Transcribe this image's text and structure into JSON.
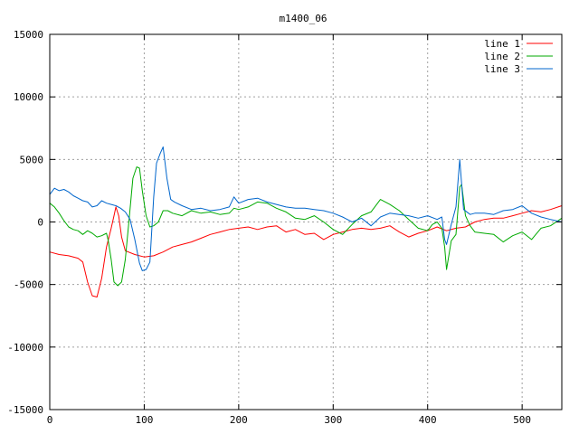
{
  "chart_data": {
    "type": "line",
    "title": "m1400_06",
    "xlabel": "",
    "ylabel": "",
    "xlim": [
      0,
      542
    ],
    "ylim": [
      -15000,
      15000
    ],
    "x_ticks": [
      0,
      100,
      200,
      300,
      400,
      500
    ],
    "y_ticks": [
      -15000,
      -10000,
      -5000,
      0,
      5000,
      10000,
      15000
    ],
    "grid": true,
    "legend_position": "top-right",
    "series": [
      {
        "name": "line 1",
        "color": "#ff0000",
        "points": [
          [
            0,
            -2400
          ],
          [
            10,
            -2600
          ],
          [
            20,
            -2700
          ],
          [
            30,
            -2900
          ],
          [
            35,
            -3200
          ],
          [
            40,
            -4800
          ],
          [
            45,
            -5900
          ],
          [
            50,
            -6000
          ],
          [
            55,
            -4500
          ],
          [
            60,
            -2000
          ],
          [
            65,
            -500
          ],
          [
            68,
            500
          ],
          [
            70,
            1200
          ],
          [
            73,
            500
          ],
          [
            76,
            -1200
          ],
          [
            80,
            -2300
          ],
          [
            90,
            -2600
          ],
          [
            100,
            -2800
          ],
          [
            110,
            -2700
          ],
          [
            120,
            -2400
          ],
          [
            130,
            -2000
          ],
          [
            140,
            -1800
          ],
          [
            150,
            -1600
          ],
          [
            160,
            -1300
          ],
          [
            170,
            -1000
          ],
          [
            180,
            -800
          ],
          [
            190,
            -600
          ],
          [
            200,
            -500
          ],
          [
            210,
            -400
          ],
          [
            220,
            -600
          ],
          [
            230,
            -400
          ],
          [
            240,
            -300
          ],
          [
            250,
            -800
          ],
          [
            260,
            -600
          ],
          [
            270,
            -1000
          ],
          [
            280,
            -900
          ],
          [
            290,
            -1400
          ],
          [
            300,
            -1000
          ],
          [
            310,
            -800
          ],
          [
            320,
            -600
          ],
          [
            330,
            -500
          ],
          [
            340,
            -600
          ],
          [
            350,
            -500
          ],
          [
            360,
            -300
          ],
          [
            370,
            -800
          ],
          [
            380,
            -1200
          ],
          [
            390,
            -900
          ],
          [
            400,
            -700
          ],
          [
            410,
            -400
          ],
          [
            420,
            -700
          ],
          [
            430,
            -500
          ],
          [
            440,
            -400
          ],
          [
            450,
            0
          ],
          [
            460,
            200
          ],
          [
            470,
            300
          ],
          [
            480,
            300
          ],
          [
            490,
            500
          ],
          [
            500,
            700
          ],
          [
            510,
            900
          ],
          [
            520,
            800
          ],
          [
            530,
            1000
          ],
          [
            542,
            1300
          ]
        ]
      },
      {
        "name": "line 2",
        "color": "#00aa00",
        "points": [
          [
            0,
            1500
          ],
          [
            5,
            1200
          ],
          [
            10,
            700
          ],
          [
            15,
            100
          ],
          [
            20,
            -400
          ],
          [
            25,
            -600
          ],
          [
            30,
            -700
          ],
          [
            35,
            -1000
          ],
          [
            40,
            -700
          ],
          [
            45,
            -900
          ],
          [
            50,
            -1200
          ],
          [
            55,
            -1100
          ],
          [
            60,
            -900
          ],
          [
            62,
            -1500
          ],
          [
            65,
            -3000
          ],
          [
            68,
            -4800
          ],
          [
            72,
            -5100
          ],
          [
            76,
            -4800
          ],
          [
            80,
            -3000
          ],
          [
            84,
            200
          ],
          [
            88,
            3500
          ],
          [
            92,
            4400
          ],
          [
            95,
            4300
          ],
          [
            98,
            2500
          ],
          [
            102,
            500
          ],
          [
            106,
            -400
          ],
          [
            110,
            -300
          ],
          [
            115,
            0
          ],
          [
            120,
            900
          ],
          [
            125,
            900
          ],
          [
            130,
            700
          ],
          [
            140,
            500
          ],
          [
            150,
            900
          ],
          [
            160,
            700
          ],
          [
            170,
            800
          ],
          [
            180,
            600
          ],
          [
            190,
            700
          ],
          [
            195,
            1100
          ],
          [
            200,
            1000
          ],
          [
            210,
            1200
          ],
          [
            220,
            1600
          ],
          [
            230,
            1500
          ],
          [
            240,
            1100
          ],
          [
            250,
            800
          ],
          [
            260,
            300
          ],
          [
            270,
            200
          ],
          [
            280,
            500
          ],
          [
            290,
            0
          ],
          [
            300,
            -600
          ],
          [
            310,
            -1000
          ],
          [
            320,
            -200
          ],
          [
            330,
            500
          ],
          [
            340,
            800
          ],
          [
            350,
            1800
          ],
          [
            360,
            1400
          ],
          [
            370,
            900
          ],
          [
            380,
            200
          ],
          [
            390,
            -500
          ],
          [
            400,
            -700
          ],
          [
            405,
            -200
          ],
          [
            410,
            0
          ],
          [
            415,
            -500
          ],
          [
            418,
            -2000
          ],
          [
            420,
            -3800
          ],
          [
            425,
            -1500
          ],
          [
            430,
            -1000
          ],
          [
            434,
            2800
          ],
          [
            436,
            3000
          ],
          [
            440,
            500
          ],
          [
            445,
            -300
          ],
          [
            450,
            -800
          ],
          [
            460,
            -900
          ],
          [
            470,
            -1000
          ],
          [
            480,
            -1600
          ],
          [
            490,
            -1100
          ],
          [
            500,
            -800
          ],
          [
            510,
            -1400
          ],
          [
            520,
            -500
          ],
          [
            530,
            -300
          ],
          [
            542,
            300
          ]
        ]
      },
      {
        "name": "line 3",
        "color": "#0066cc",
        "points": [
          [
            0,
            2200
          ],
          [
            5,
            2700
          ],
          [
            10,
            2500
          ],
          [
            15,
            2600
          ],
          [
            20,
            2400
          ],
          [
            25,
            2100
          ],
          [
            30,
            1900
          ],
          [
            35,
            1700
          ],
          [
            40,
            1600
          ],
          [
            45,
            1200
          ],
          [
            50,
            1300
          ],
          [
            55,
            1700
          ],
          [
            60,
            1500
          ],
          [
            65,
            1400
          ],
          [
            70,
            1300
          ],
          [
            75,
            1100
          ],
          [
            80,
            800
          ],
          [
            85,
            200
          ],
          [
            90,
            -1400
          ],
          [
            95,
            -3300
          ],
          [
            98,
            -3900
          ],
          [
            102,
            -3800
          ],
          [
            106,
            -3200
          ],
          [
            110,
            2000
          ],
          [
            113,
            4700
          ],
          [
            117,
            5500
          ],
          [
            120,
            6000
          ],
          [
            124,
            3500
          ],
          [
            128,
            1800
          ],
          [
            132,
            1600
          ],
          [
            140,
            1300
          ],
          [
            150,
            1000
          ],
          [
            160,
            1100
          ],
          [
            170,
            900
          ],
          [
            180,
            1000
          ],
          [
            190,
            1200
          ],
          [
            195,
            2000
          ],
          [
            200,
            1500
          ],
          [
            210,
            1800
          ],
          [
            220,
            1900
          ],
          [
            230,
            1600
          ],
          [
            240,
            1400
          ],
          [
            250,
            1200
          ],
          [
            260,
            1100
          ],
          [
            270,
            1100
          ],
          [
            280,
            1000
          ],
          [
            290,
            900
          ],
          [
            300,
            700
          ],
          [
            310,
            400
          ],
          [
            320,
            0
          ],
          [
            330,
            300
          ],
          [
            340,
            -300
          ],
          [
            350,
            400
          ],
          [
            360,
            700
          ],
          [
            370,
            600
          ],
          [
            380,
            500
          ],
          [
            390,
            300
          ],
          [
            400,
            500
          ],
          [
            410,
            200
          ],
          [
            415,
            400
          ],
          [
            418,
            -1400
          ],
          [
            420,
            -1800
          ],
          [
            425,
            -200
          ],
          [
            430,
            1200
          ],
          [
            434,
            5000
          ],
          [
            438,
            1000
          ],
          [
            445,
            600
          ],
          [
            450,
            700
          ],
          [
            460,
            700
          ],
          [
            470,
            600
          ],
          [
            480,
            900
          ],
          [
            490,
            1000
          ],
          [
            500,
            1300
          ],
          [
            510,
            700
          ],
          [
            520,
            400
          ],
          [
            530,
            200
          ],
          [
            542,
            0
          ]
        ]
      }
    ]
  }
}
